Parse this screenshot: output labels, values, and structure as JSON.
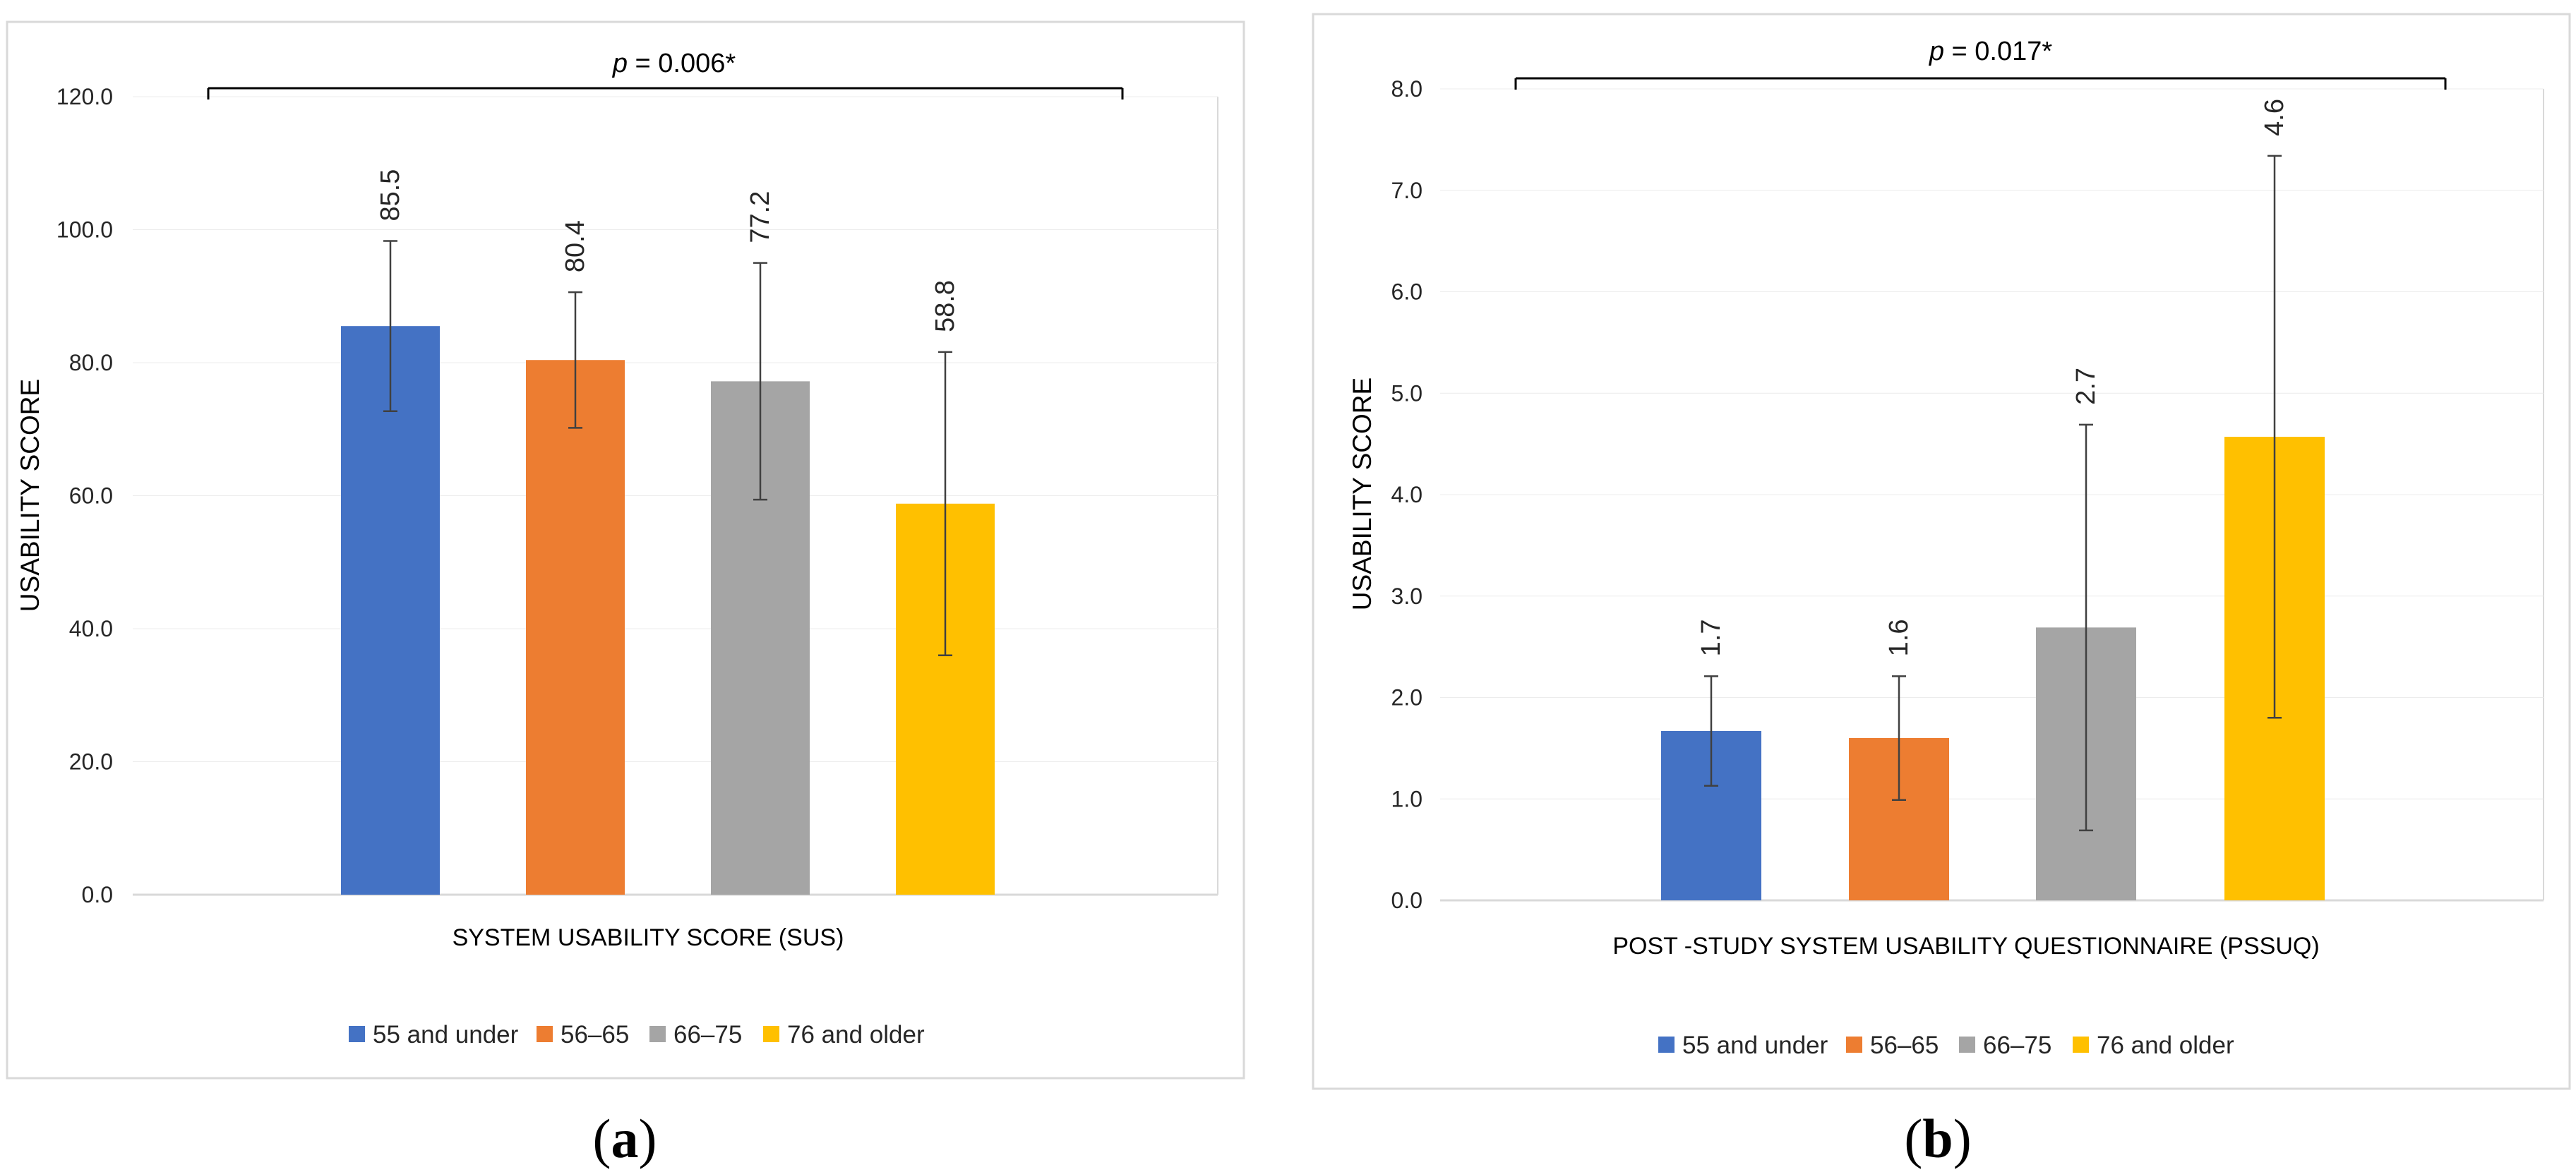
{
  "chart_data": [
    {
      "type": "bar",
      "panel_label": "a",
      "categories": [
        "SYSTEM USABILITY SCORE (SUS)"
      ],
      "series": [
        {
          "name": "55 and under",
          "values": [
            85.5
          ],
          "error": [
            12.8
          ],
          "color": "#4472C4"
        },
        {
          "name": "56–65",
          "values": [
            80.4
          ],
          "error": [
            10.2
          ],
          "color": "#ED7D31"
        },
        {
          "name": "66–75",
          "values": [
            77.2
          ],
          "error": [
            17.8
          ],
          "color": "#A5A5A5"
        },
        {
          "name": "76 and older",
          "values": [
            58.8
          ],
          "error": [
            22.8
          ],
          "color": "#FFC000"
        }
      ],
      "data_labels": [
        "85.5",
        "80.4",
        "77.2",
        "58.8"
      ],
      "ylabel": "USABILITY SCORE",
      "ylim": [
        0,
        120
      ],
      "yticks": [
        "0.0",
        "20.0",
        "40.0",
        "60.0",
        "80.0",
        "100.0",
        "120.0"
      ],
      "annotation": {
        "p_label": "p",
        "p_value": " =  0.006*"
      },
      "legend_position": "bottom"
    },
    {
      "type": "bar",
      "panel_label": "b",
      "categories": [
        "POST -STUDY SYSTEM USABILITY QUESTIONNAIRE (PSSUQ)"
      ],
      "series": [
        {
          "name": "55 and under",
          "values": [
            1.67
          ],
          "error": [
            0.54
          ],
          "color": "#4472C4"
        },
        {
          "name": "56–65",
          "values": [
            1.6
          ],
          "error": [
            0.61
          ],
          "color": "#ED7D31"
        },
        {
          "name": "66–75",
          "values": [
            2.69
          ],
          "error": [
            2.0
          ],
          "color": "#A5A5A5"
        },
        {
          "name": "76 and older",
          "values": [
            4.57
          ],
          "error": [
            2.77
          ],
          "color": "#FFC000"
        }
      ],
      "data_labels": [
        "1.7",
        "1.6",
        "2.7",
        "4.6"
      ],
      "ylabel": "USABILITY SCORE",
      "ylim": [
        0,
        8
      ],
      "yticks": [
        "0.0",
        "1.0",
        "2.0",
        "3.0",
        "4.0",
        "5.0",
        "6.0",
        "7.0",
        "8.0"
      ],
      "annotation": {
        "p_label": "p",
        "p_value": " =  0.017*"
      },
      "legend_position": "bottom"
    }
  ]
}
